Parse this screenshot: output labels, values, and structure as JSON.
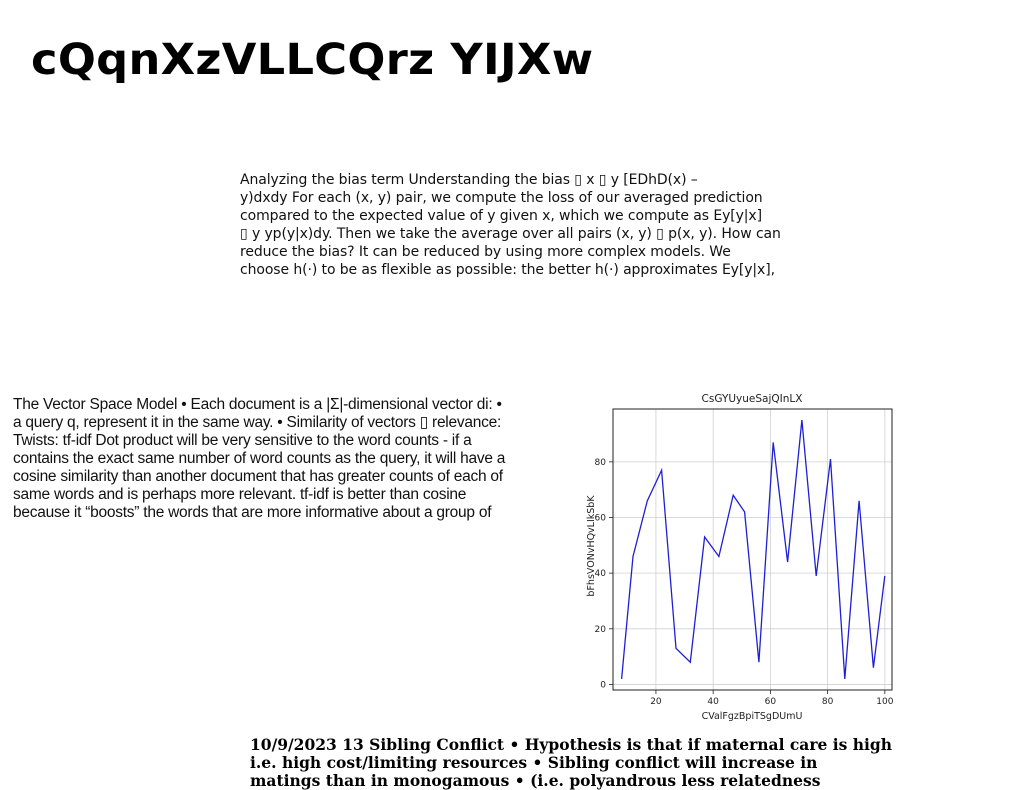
{
  "title": "cQqnXzVLLCQrz YIJXw",
  "text_block_1": {
    "lines": [
      "Analyzing the bias term Understanding the bias ▯ x ▯ y [EDhD(x) –",
      "y)dxdy For each (x, y) pair, we compute the loss of our averaged prediction",
      "compared to the expected value of y given x, which we compute as Ey[y|x]",
      "▯ y yp(y|x)dy. Then we take the average over all pairs (x, y) ▯ p(x, y). How can",
      "reduce the bias? It can be reduced by using more complex models. We",
      "choose h(·) to be as flexible as possible: the better h(·) approximates Ey[y|x],"
    ]
  },
  "text_block_2": {
    "lines": [
      "The Vector Space Model • Each document is a |Σ|-dimensional vector di: •",
      "a query q, represent it in the same way. • Similarity of vectors ▯ relevance:",
      "Twists:  tf-idf Dot product will be very sensitive to the word counts - if a",
      "contains the exact same number of word counts as the query, it will have a",
      "cosine similarity than another document that has greater counts of each of",
      "same words and is perhaps more relevant. tf-idf is better than cosine",
      "because it “boosts” the words that are more informative about a group of"
    ]
  },
  "text_block_3": {
    "lines": [
      "10/9/2023 13 Sibling Conflict • Hypothesis is that if maternal care is high",
      "i.e. high cost/limiting resources • Sibling conflict will increase in",
      "matings than in monogamous • (i.e. polyandrous less relatedness"
    ]
  },
  "chart_data": {
    "type": "line",
    "title": "CsGYUyueSajQInLX",
    "xlabel": "CValFgzBpiTSgDUmU",
    "ylabel": "bFhsVONvHQvLIkSbK",
    "xlim": [
      5,
      102.5
    ],
    "ylim": [
      -2,
      99
    ],
    "xticks": [
      20,
      40,
      60,
      80,
      100
    ],
    "yticks": [
      0,
      20,
      40,
      60,
      80
    ],
    "grid": true,
    "line_color": "#1f1fd6",
    "series": [
      {
        "x": [
          8,
          12,
          17,
          22,
          27,
          32,
          37,
          42,
          47,
          51,
          56,
          61,
          66,
          71,
          76,
          81,
          86,
          91,
          96,
          100
        ],
        "y": [
          2,
          46,
          66,
          77,
          13,
          8,
          53,
          46,
          68,
          62,
          8,
          87,
          44,
          95,
          39,
          81,
          2,
          66,
          6,
          39
        ]
      }
    ]
  }
}
